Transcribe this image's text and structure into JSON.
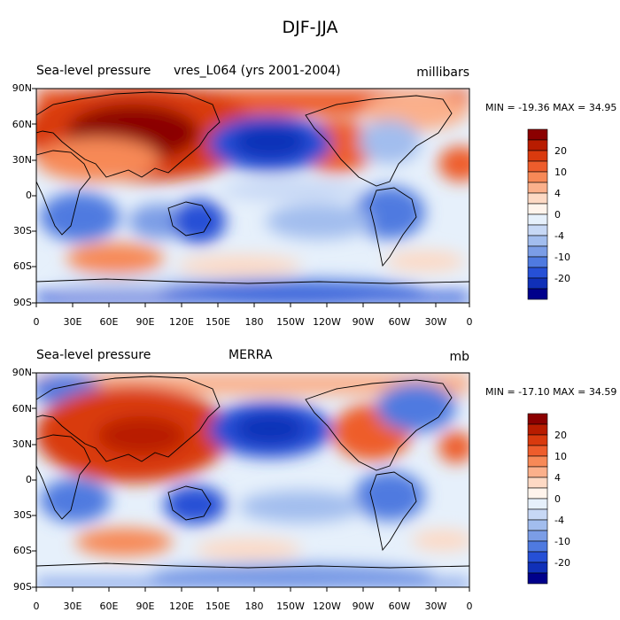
{
  "title": "DJF-JJA",
  "panels": [
    {
      "left_title": "Sea-level pressure",
      "center_title": "vres_L064 (yrs 2001-2004)",
      "units": "millibars",
      "minmax": "MIN = -19.36 MAX =  34.95"
    },
    {
      "left_title": "Sea-level pressure",
      "center_title": "MERRA",
      "units": "mb",
      "minmax": "MIN = -17.10 MAX =  34.59"
    }
  ],
  "lat_ticks": [
    "90N",
    "60N",
    "30N",
    "0",
    "30S",
    "60S",
    "90S"
  ],
  "lon_ticks": [
    "0",
    "30E",
    "60E",
    "90E",
    "120E",
    "150E",
    "180",
    "150W",
    "120W",
    "90W",
    "60W",
    "30W",
    "0"
  ],
  "colorbar": {
    "labels": [
      "20",
      "10",
      "4",
      "0",
      "-4",
      "-10",
      "-20"
    ],
    "colors": [
      "#8b0000",
      "#b81c00",
      "#d93a0e",
      "#ee5d2c",
      "#f78957",
      "#fbb08b",
      "#fdd9c4",
      "#fff4ec",
      "#e6f0fb",
      "#c7d8f5",
      "#a2bdee",
      "#7b9de6",
      "#4f7ae0",
      "#2650d6",
      "#1030b8",
      "#00008b"
    ]
  },
  "chart_data": {
    "type": "map-contour",
    "variable": "Sea-level pressure difference DJF-JJA",
    "contour_levels": [
      -25,
      -20,
      -15,
      -10,
      -8,
      -6,
      -4,
      -2,
      0,
      2,
      4,
      6,
      8,
      10,
      15,
      20,
      25
    ],
    "panels": [
      {
        "dataset": "vres_L064 (yrs 2001-2004)",
        "units": "millibars",
        "min": -19.36,
        "max": 34.95
      },
      {
        "dataset": "MERRA",
        "units": "mb",
        "min": -17.1,
        "max": 34.59
      }
    ]
  }
}
